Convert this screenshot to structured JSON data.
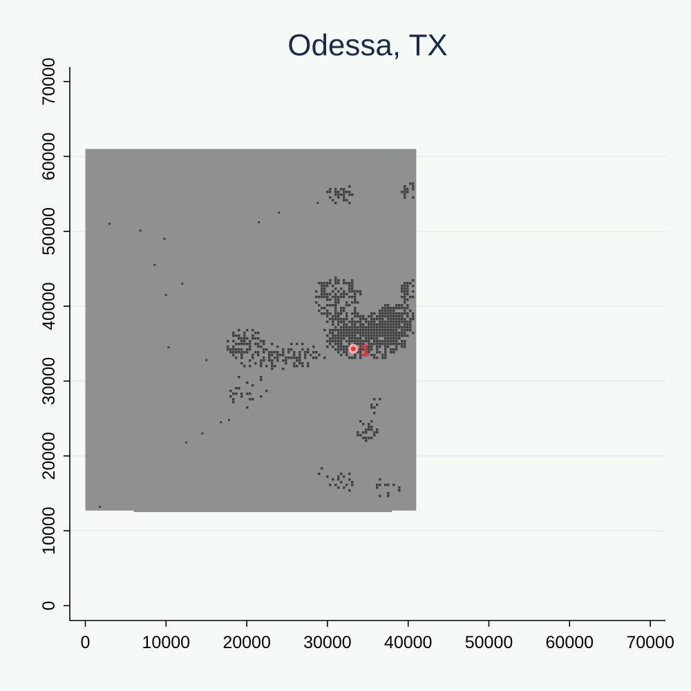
{
  "chart_data": {
    "type": "heatmap",
    "title": "Odessa, TX",
    "xlabel": "",
    "ylabel": "",
    "xlim": [
      -2000,
      72000
    ],
    "ylim": [
      -2000,
      72000
    ],
    "x_ticks": [
      0,
      10000,
      20000,
      30000,
      40000,
      50000,
      60000,
      70000
    ],
    "y_ticks": [
      0,
      10000,
      20000,
      30000,
      40000,
      50000,
      60000,
      70000
    ],
    "y_gridlines": [
      10000,
      20000,
      30000,
      40000,
      50000,
      60000
    ],
    "grid": "horizontal",
    "colors": {
      "background": "#f5faf7",
      "raster_background": "#8f9190",
      "developed": "#3f3f3f",
      "gridline": "#e6eef0",
      "marker": "#ff3030",
      "marker_ring": "#ffb0b0",
      "title": "#1a2b4c"
    },
    "raster_extent": {
      "x": [
        0,
        41000
      ],
      "y": [
        12500,
        61000
      ],
      "notch_bottom_left_x": [
        0,
        6000
      ],
      "notch_bottom_left_y": [
        12500,
        12700
      ],
      "notch_bottom_right_x": [
        38000,
        41000
      ],
      "notch_bottom_right_y": [
        12500,
        12700
      ]
    },
    "developed_clusters": [
      {
        "cx": 34500,
        "cy": 36500,
        "rx": 5500,
        "ry": 3500,
        "density": 0.95
      },
      {
        "cx": 31000,
        "cy": 41500,
        "rx": 3000,
        "ry": 3000,
        "density": 0.7
      },
      {
        "cx": 38500,
        "cy": 38000,
        "rx": 2800,
        "ry": 2500,
        "density": 0.8
      },
      {
        "cx": 40000,
        "cy": 41500,
        "rx": 1200,
        "ry": 2500,
        "density": 0.6
      },
      {
        "cx": 24000,
        "cy": 33500,
        "rx": 6000,
        "ry": 2000,
        "density": 0.45
      },
      {
        "cx": 19500,
        "cy": 35500,
        "rx": 2500,
        "ry": 2000,
        "density": 0.5
      },
      {
        "cx": 20000,
        "cy": 29000,
        "rx": 2500,
        "ry": 2500,
        "density": 0.25
      },
      {
        "cx": 31500,
        "cy": 55000,
        "rx": 2000,
        "ry": 1500,
        "density": 0.4
      },
      {
        "cx": 40000,
        "cy": 55500,
        "rx": 1200,
        "ry": 1500,
        "density": 0.4
      },
      {
        "cx": 34800,
        "cy": 23500,
        "rx": 1500,
        "ry": 1500,
        "density": 0.5
      },
      {
        "cx": 36000,
        "cy": 27000,
        "rx": 1000,
        "ry": 1500,
        "density": 0.3
      },
      {
        "cx": 31500,
        "cy": 16500,
        "rx": 2000,
        "ry": 1500,
        "density": 0.3
      },
      {
        "cx": 37000,
        "cy": 16000,
        "rx": 1800,
        "ry": 1500,
        "density": 0.3
      },
      {
        "cx": 29000,
        "cy": 18000,
        "rx": 800,
        "ry": 800,
        "density": 0.3
      }
    ],
    "scattered_points": [
      [
        3000,
        51000
      ],
      [
        6800,
        50100
      ],
      [
        9800,
        49000
      ],
      [
        8600,
        45500
      ],
      [
        10000,
        41500
      ],
      [
        12000,
        43000
      ],
      [
        10300,
        34500
      ],
      [
        15000,
        32800
      ],
      [
        12500,
        21800
      ],
      [
        14500,
        23000
      ],
      [
        16800,
        24500
      ],
      [
        17800,
        24800
      ],
      [
        1800,
        13200
      ],
      [
        21500,
        51200
      ],
      [
        24000,
        52500
      ],
      [
        28800,
        53800
      ]
    ],
    "marker": {
      "x": 33200,
      "y": 34300,
      "label": "1"
    }
  }
}
